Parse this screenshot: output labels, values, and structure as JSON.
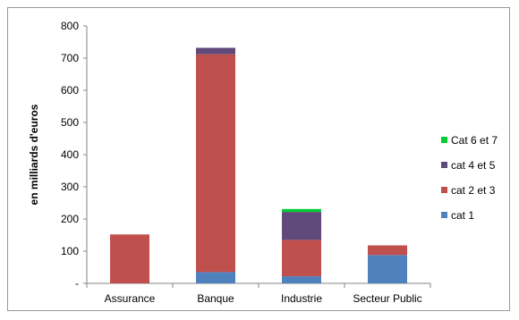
{
  "chart_data": {
    "type": "bar",
    "stacked": true,
    "categories": [
      "Assurance",
      "Banque",
      "Industrie",
      "Secteur Public"
    ],
    "ylabel": "en milliards d'euros",
    "ylim": [
      0,
      800
    ],
    "yticks": [
      0,
      100,
      200,
      300,
      400,
      500,
      600,
      700,
      800
    ],
    "ytick_labels": [
      "-",
      "100",
      "200",
      "300",
      "400",
      "500",
      "600",
      "700",
      "800"
    ],
    "grid": false,
    "legend_position": "right",
    "series": [
      {
        "name": "cat 1",
        "color": "#4f81bd",
        "values": [
          0,
          35,
          22,
          88
        ]
      },
      {
        "name": "cat 2 et 3",
        "color": "#c0504d",
        "values": [
          152,
          677,
          113,
          30
        ]
      },
      {
        "name": "cat  4 et 5",
        "color": "#604a7b",
        "values": [
          0,
          20,
          87,
          0
        ]
      },
      {
        "name": "Cat 6 et 7",
        "color": "#00cc33",
        "values": [
          0,
          0,
          9,
          0
        ]
      }
    ]
  }
}
